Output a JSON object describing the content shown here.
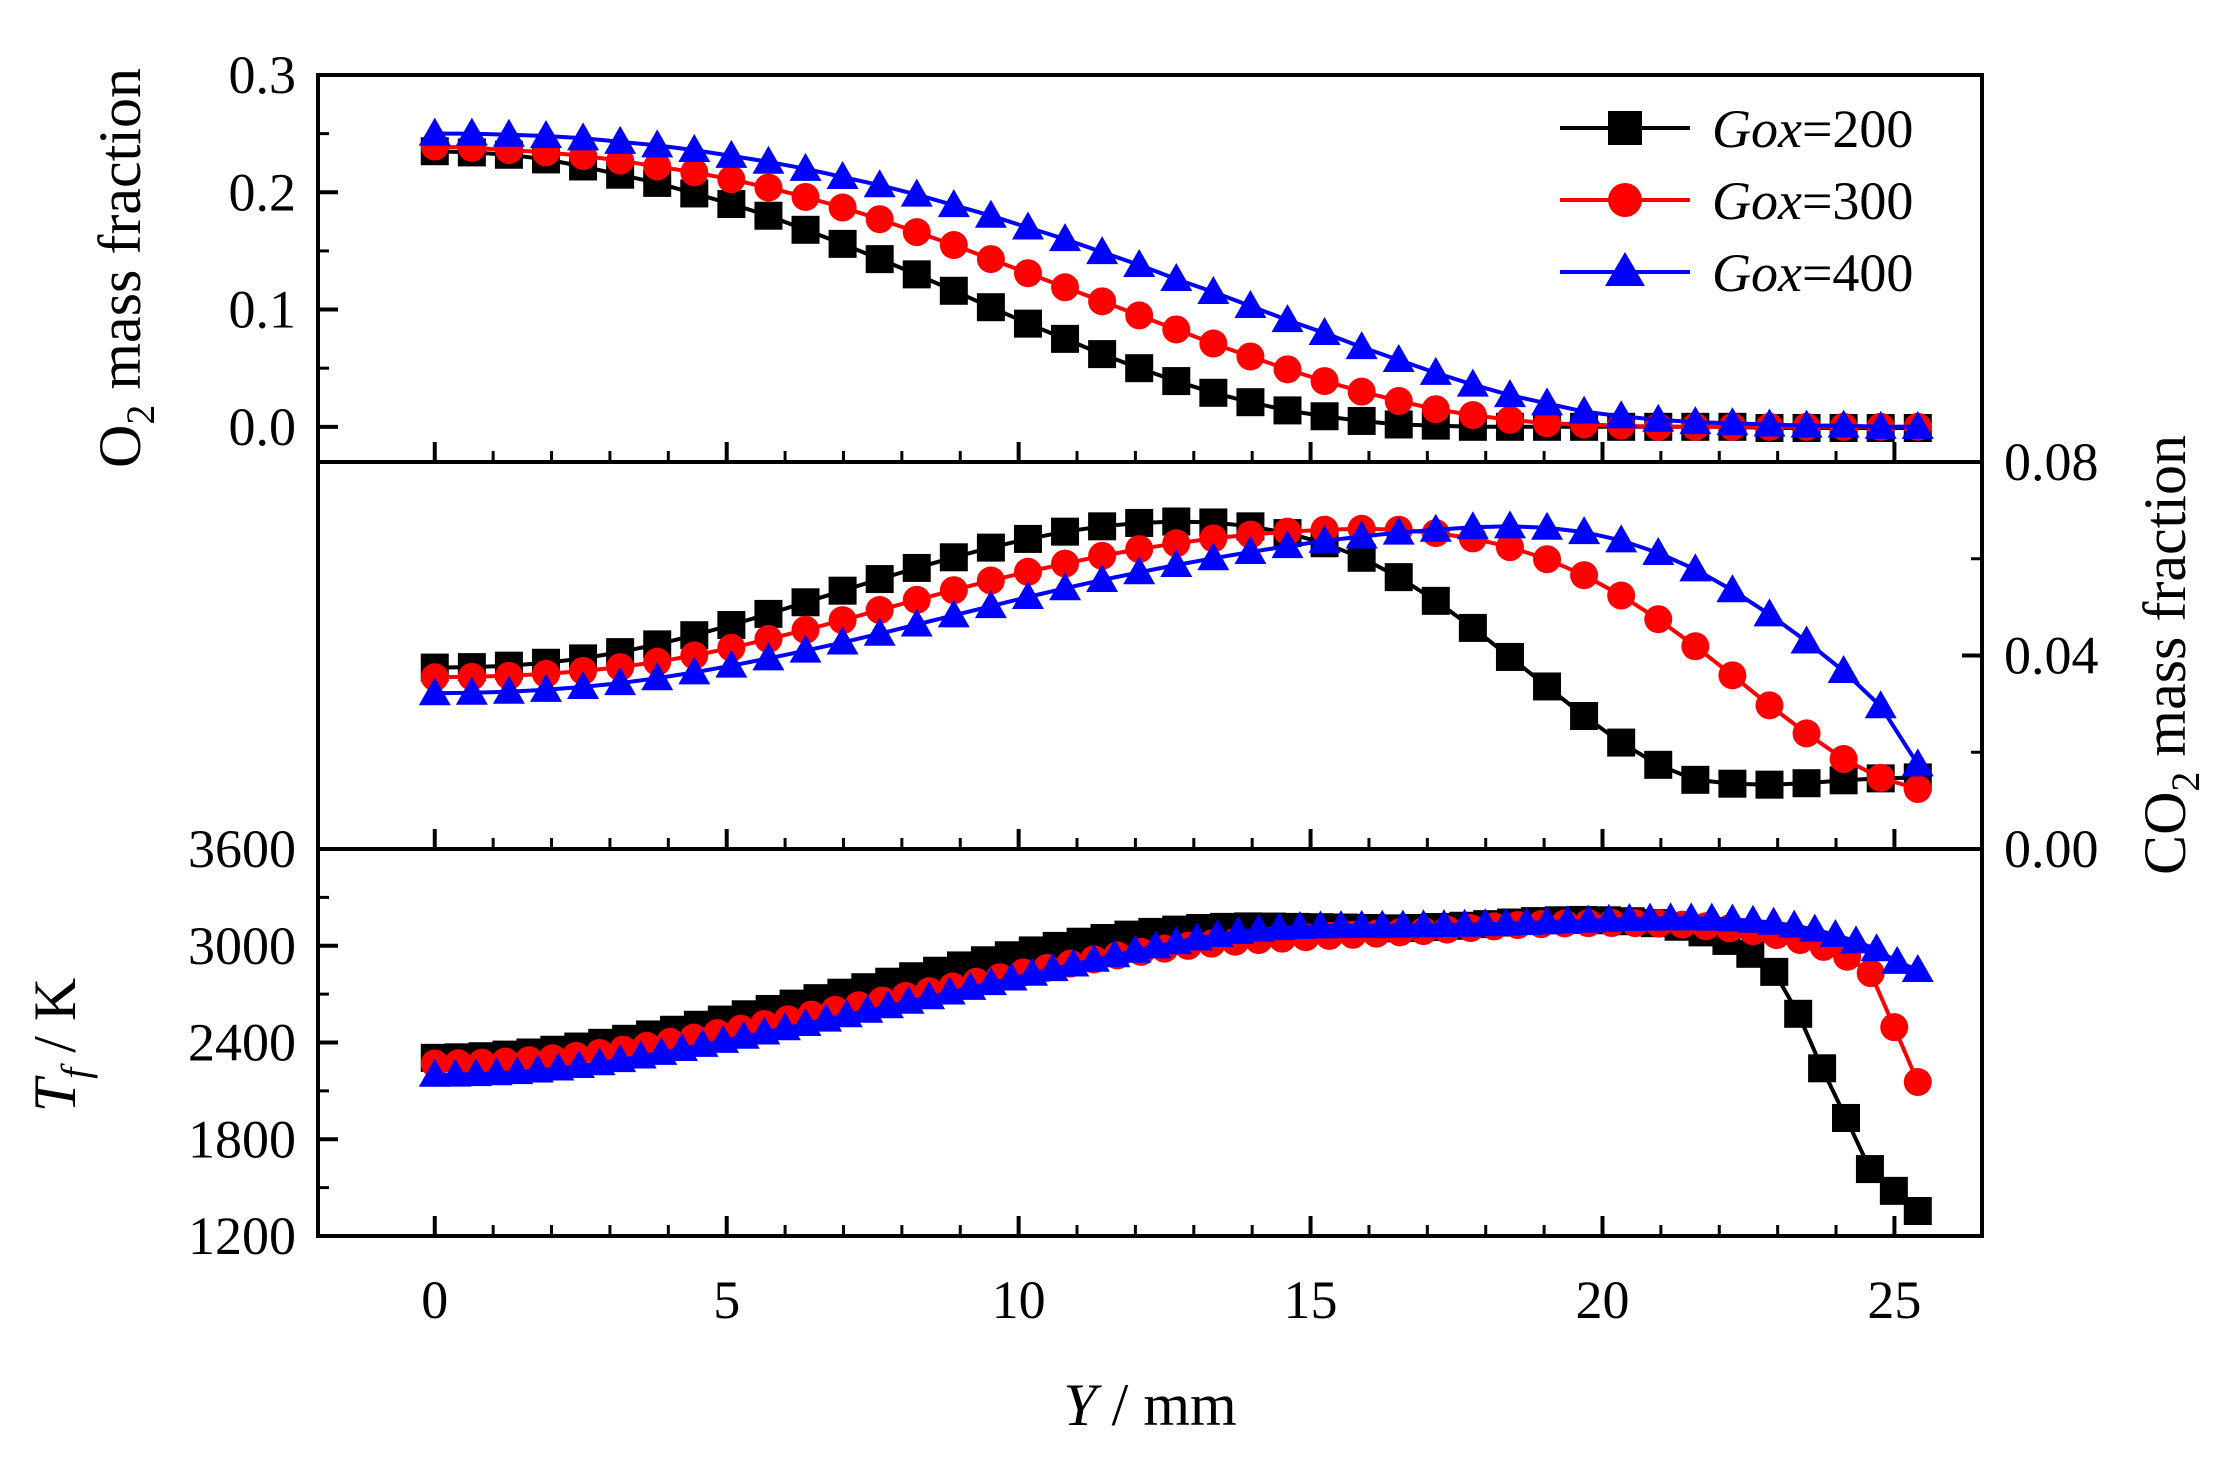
{
  "chart_data": [
    {
      "type": "line",
      "panel": "top",
      "ylabel_main": "O",
      "ylabel_sub": "2",
      "ylabel_rest": " mass fraction",
      "ylim": [
        -0.03,
        0.3
      ],
      "yticks": [
        0.0,
        0.1,
        0.2,
        0.3
      ],
      "ytick_labels": [
        "0.0",
        "0.1",
        "0.2",
        "0.3"
      ],
      "series": [
        {
          "name": "Gox=200",
          "color": "#000000",
          "marker": "square",
          "values": [
            0.235,
            0.234,
            0.232,
            0.228,
            0.222,
            0.215,
            0.208,
            0.199,
            0.19,
            0.18,
            0.168,
            0.156,
            0.143,
            0.13,
            0.116,
            0.102,
            0.088,
            0.075,
            0.062,
            0.05,
            0.039,
            0.029,
            0.021,
            0.014,
            0.009,
            0.005,
            0.002,
            0.001,
            0.0,
            0.0,
            0.0,
            0.0,
            0.0,
            0.0,
            0.0,
            0.0,
            -0.001,
            -0.001,
            -0.001,
            -0.001,
            -0.001
          ]
        },
        {
          "name": "Gox=300",
          "color": "#ff0000",
          "marker": "circle",
          "values": [
            0.239,
            0.238,
            0.236,
            0.234,
            0.231,
            0.227,
            0.222,
            0.217,
            0.211,
            0.204,
            0.196,
            0.187,
            0.177,
            0.166,
            0.155,
            0.143,
            0.131,
            0.119,
            0.107,
            0.095,
            0.083,
            0.071,
            0.06,
            0.049,
            0.039,
            0.03,
            0.022,
            0.015,
            0.01,
            0.006,
            0.003,
            0.002,
            0.001,
            0.0,
            0.0,
            0.0,
            0.0,
            0.0,
            0.0,
            0.0,
            0.0
          ]
        },
        {
          "name": "Gox=400",
          "color": "#0000ff",
          "marker": "triangle",
          "values": [
            0.25,
            0.25,
            0.249,
            0.248,
            0.246,
            0.243,
            0.24,
            0.236,
            0.231,
            0.226,
            0.22,
            0.213,
            0.206,
            0.198,
            0.189,
            0.18,
            0.17,
            0.16,
            0.149,
            0.138,
            0.126,
            0.115,
            0.103,
            0.091,
            0.08,
            0.068,
            0.057,
            0.046,
            0.036,
            0.027,
            0.02,
            0.013,
            0.009,
            0.006,
            0.004,
            0.003,
            0.002,
            0.001,
            0.001,
            0.0,
            0.0
          ]
        }
      ]
    },
    {
      "type": "line",
      "panel": "middle",
      "ylabel_main": "CO",
      "ylabel_sub": "2",
      "ylabel_rest": " mass fraction",
      "ylim": [
        0.0,
        0.08
      ],
      "yticks": [
        0.0,
        0.04,
        0.08
      ],
      "ytick_labels": [
        "0.00",
        "0.04",
        "0.08"
      ],
      "series": [
        {
          "name": "Gox=200",
          "color": "#000000",
          "marker": "square",
          "values": [
            0.0375,
            0.0376,
            0.0379,
            0.0385,
            0.0394,
            0.0407,
            0.0423,
            0.0442,
            0.0463,
            0.0486,
            0.051,
            0.0534,
            0.0558,
            0.0581,
            0.0603,
            0.0623,
            0.0641,
            0.0656,
            0.0667,
            0.0674,
            0.0677,
            0.0675,
            0.0667,
            0.0653,
            0.0632,
            0.0602,
            0.0562,
            0.0513,
            0.0457,
            0.0397,
            0.0336,
            0.0275,
            0.022,
            0.0174,
            0.0143,
            0.0135,
            0.0133,
            0.0136,
            0.0142,
            0.0146,
            0.0148
          ]
        },
        {
          "name": "Gox=300",
          "color": "#ff0000",
          "marker": "circle",
          "values": [
            0.0355,
            0.0356,
            0.0358,
            0.0362,
            0.0368,
            0.0376,
            0.0387,
            0.04,
            0.0416,
            0.0434,
            0.0453,
            0.0473,
            0.0494,
            0.0515,
            0.0535,
            0.0555,
            0.0573,
            0.059,
            0.0606,
            0.062,
            0.0632,
            0.0642,
            0.065,
            0.0656,
            0.066,
            0.0662,
            0.066,
            0.0653,
            0.0642,
            0.0624,
            0.0599,
            0.0566,
            0.0524,
            0.0475,
            0.0419,
            0.0359,
            0.0297,
            0.0239,
            0.0186,
            0.0147,
            0.0124
          ]
        },
        {
          "name": "Gox=400",
          "color": "#0000ff",
          "marker": "triangle",
          "values": [
            0.0322,
            0.0323,
            0.0325,
            0.0329,
            0.0335,
            0.0343,
            0.0353,
            0.0365,
            0.0379,
            0.0394,
            0.041,
            0.0427,
            0.0445,
            0.0464,
            0.0483,
            0.0502,
            0.0521,
            0.0539,
            0.0556,
            0.0572,
            0.0587,
            0.0601,
            0.0614,
            0.0626,
            0.0637,
            0.0646,
            0.0654,
            0.066,
            0.0665,
            0.0667,
            0.0664,
            0.0655,
            0.0638,
            0.0612,
            0.0578,
            0.0535,
            0.0485,
            0.0429,
            0.0368,
            0.0295,
            0.0175
          ]
        }
      ]
    },
    {
      "type": "line",
      "panel": "bottom",
      "ylabel_main": "T",
      "ylabel_sub": "f",
      "ylabel_rest": " / K",
      "ylim": [
        1200,
        3600
      ],
      "yticks": [
        1200,
        1800,
        2400,
        3000,
        3600
      ],
      "ytick_labels": [
        "1200",
        "1800",
        "2400",
        "3000",
        "3600"
      ],
      "series": [
        {
          "name": "Gox=200",
          "color": "#000000",
          "marker": "square",
          "values": [
            2305,
            2308,
            2315,
            2325,
            2338,
            2355,
            2375,
            2398,
            2423,
            2450,
            2479,
            2510,
            2542,
            2575,
            2608,
            2641,
            2675,
            2709,
            2743,
            2777,
            2811,
            2845,
            2878,
            2910,
            2941,
            2971,
            2999,
            3025,
            3048,
            3069,
            3086,
            3100,
            3110,
            3117,
            3120,
            3119,
            3117,
            3115,
            3113,
            3110,
            3108,
            3110,
            3116,
            3124,
            3134,
            3144,
            3153,
            3158,
            3160,
            3158,
            3152,
            3140,
            3118,
            3083,
            3030,
            2950,
            2838,
            2578,
            2240,
            1932,
            1615,
            1480,
            1355
          ]
        },
        {
          "name": "Gox=300",
          "color": "#ff0000",
          "marker": "circle",
          "values": [
            2270,
            2271,
            2275,
            2281,
            2290,
            2302,
            2317,
            2335,
            2356,
            2379,
            2404,
            2430,
            2458,
            2486,
            2515,
            2544,
            2573,
            2602,
            2631,
            2660,
            2689,
            2718,
            2747,
            2776,
            2805,
            2834,
            2862,
            2889,
            2915,
            2940,
            2962,
            2982,
            2999,
            3013,
            3025,
            3035,
            3044,
            3053,
            3061,
            3068,
            3075,
            3083,
            3091,
            3100,
            3110,
            3120,
            3128,
            3134,
            3138,
            3140,
            3141,
            3140,
            3137,
            3131,
            3121,
            3108,
            3090,
            3066,
            3035,
            2993,
            2932,
            2830,
            2495,
            2155
          ]
        },
        {
          "name": "Gox=400",
          "color": "#0000ff",
          "marker": "triangle",
          "values": [
            2200,
            2201,
            2204,
            2209,
            2216,
            2226,
            2239,
            2254,
            2271,
            2291,
            2313,
            2336,
            2360,
            2385,
            2410,
            2436,
            2462,
            2488,
            2515,
            2542,
            2569,
            2597,
            2625,
            2653,
            2681,
            2710,
            2739,
            2768,
            2797,
            2826,
            2855,
            2884,
            2913,
            2941,
            2969,
            2996,
            3022,
            3046,
            3067,
            3085,
            3099,
            3109,
            3116,
            3120,
            3122,
            3123,
            3124,
            3125,
            3126,
            3128,
            3130,
            3133,
            3137,
            3141,
            3146,
            3151,
            3156,
            3161,
            3165,
            3168,
            3170,
            3170,
            3168,
            3163,
            3155,
            3143,
            3125,
            3100,
            3067,
            3027,
            2978,
            2900,
            2850
          ]
        }
      ]
    }
  ],
  "xaxis": {
    "xlim": [
      -2,
      26.5
    ],
    "xticks": [
      0,
      5,
      10,
      15,
      20,
      25
    ],
    "xtick_labels": [
      "0",
      "5",
      "10",
      "15",
      "20",
      "25"
    ],
    "xmax_data": 25.4,
    "label_italic": "Y",
    "label_rest": " / mm"
  },
  "legend": {
    "position": "top-right",
    "entries": [
      {
        "italic": "Gox",
        "rest": "=200",
        "color": "#000000",
        "marker": "square"
      },
      {
        "italic": "Gox",
        "rest": "=300",
        "color": "#ff0000",
        "marker": "circle"
      },
      {
        "italic": "Gox",
        "rest": "=400",
        "color": "#0000ff",
        "marker": "triangle"
      }
    ]
  }
}
